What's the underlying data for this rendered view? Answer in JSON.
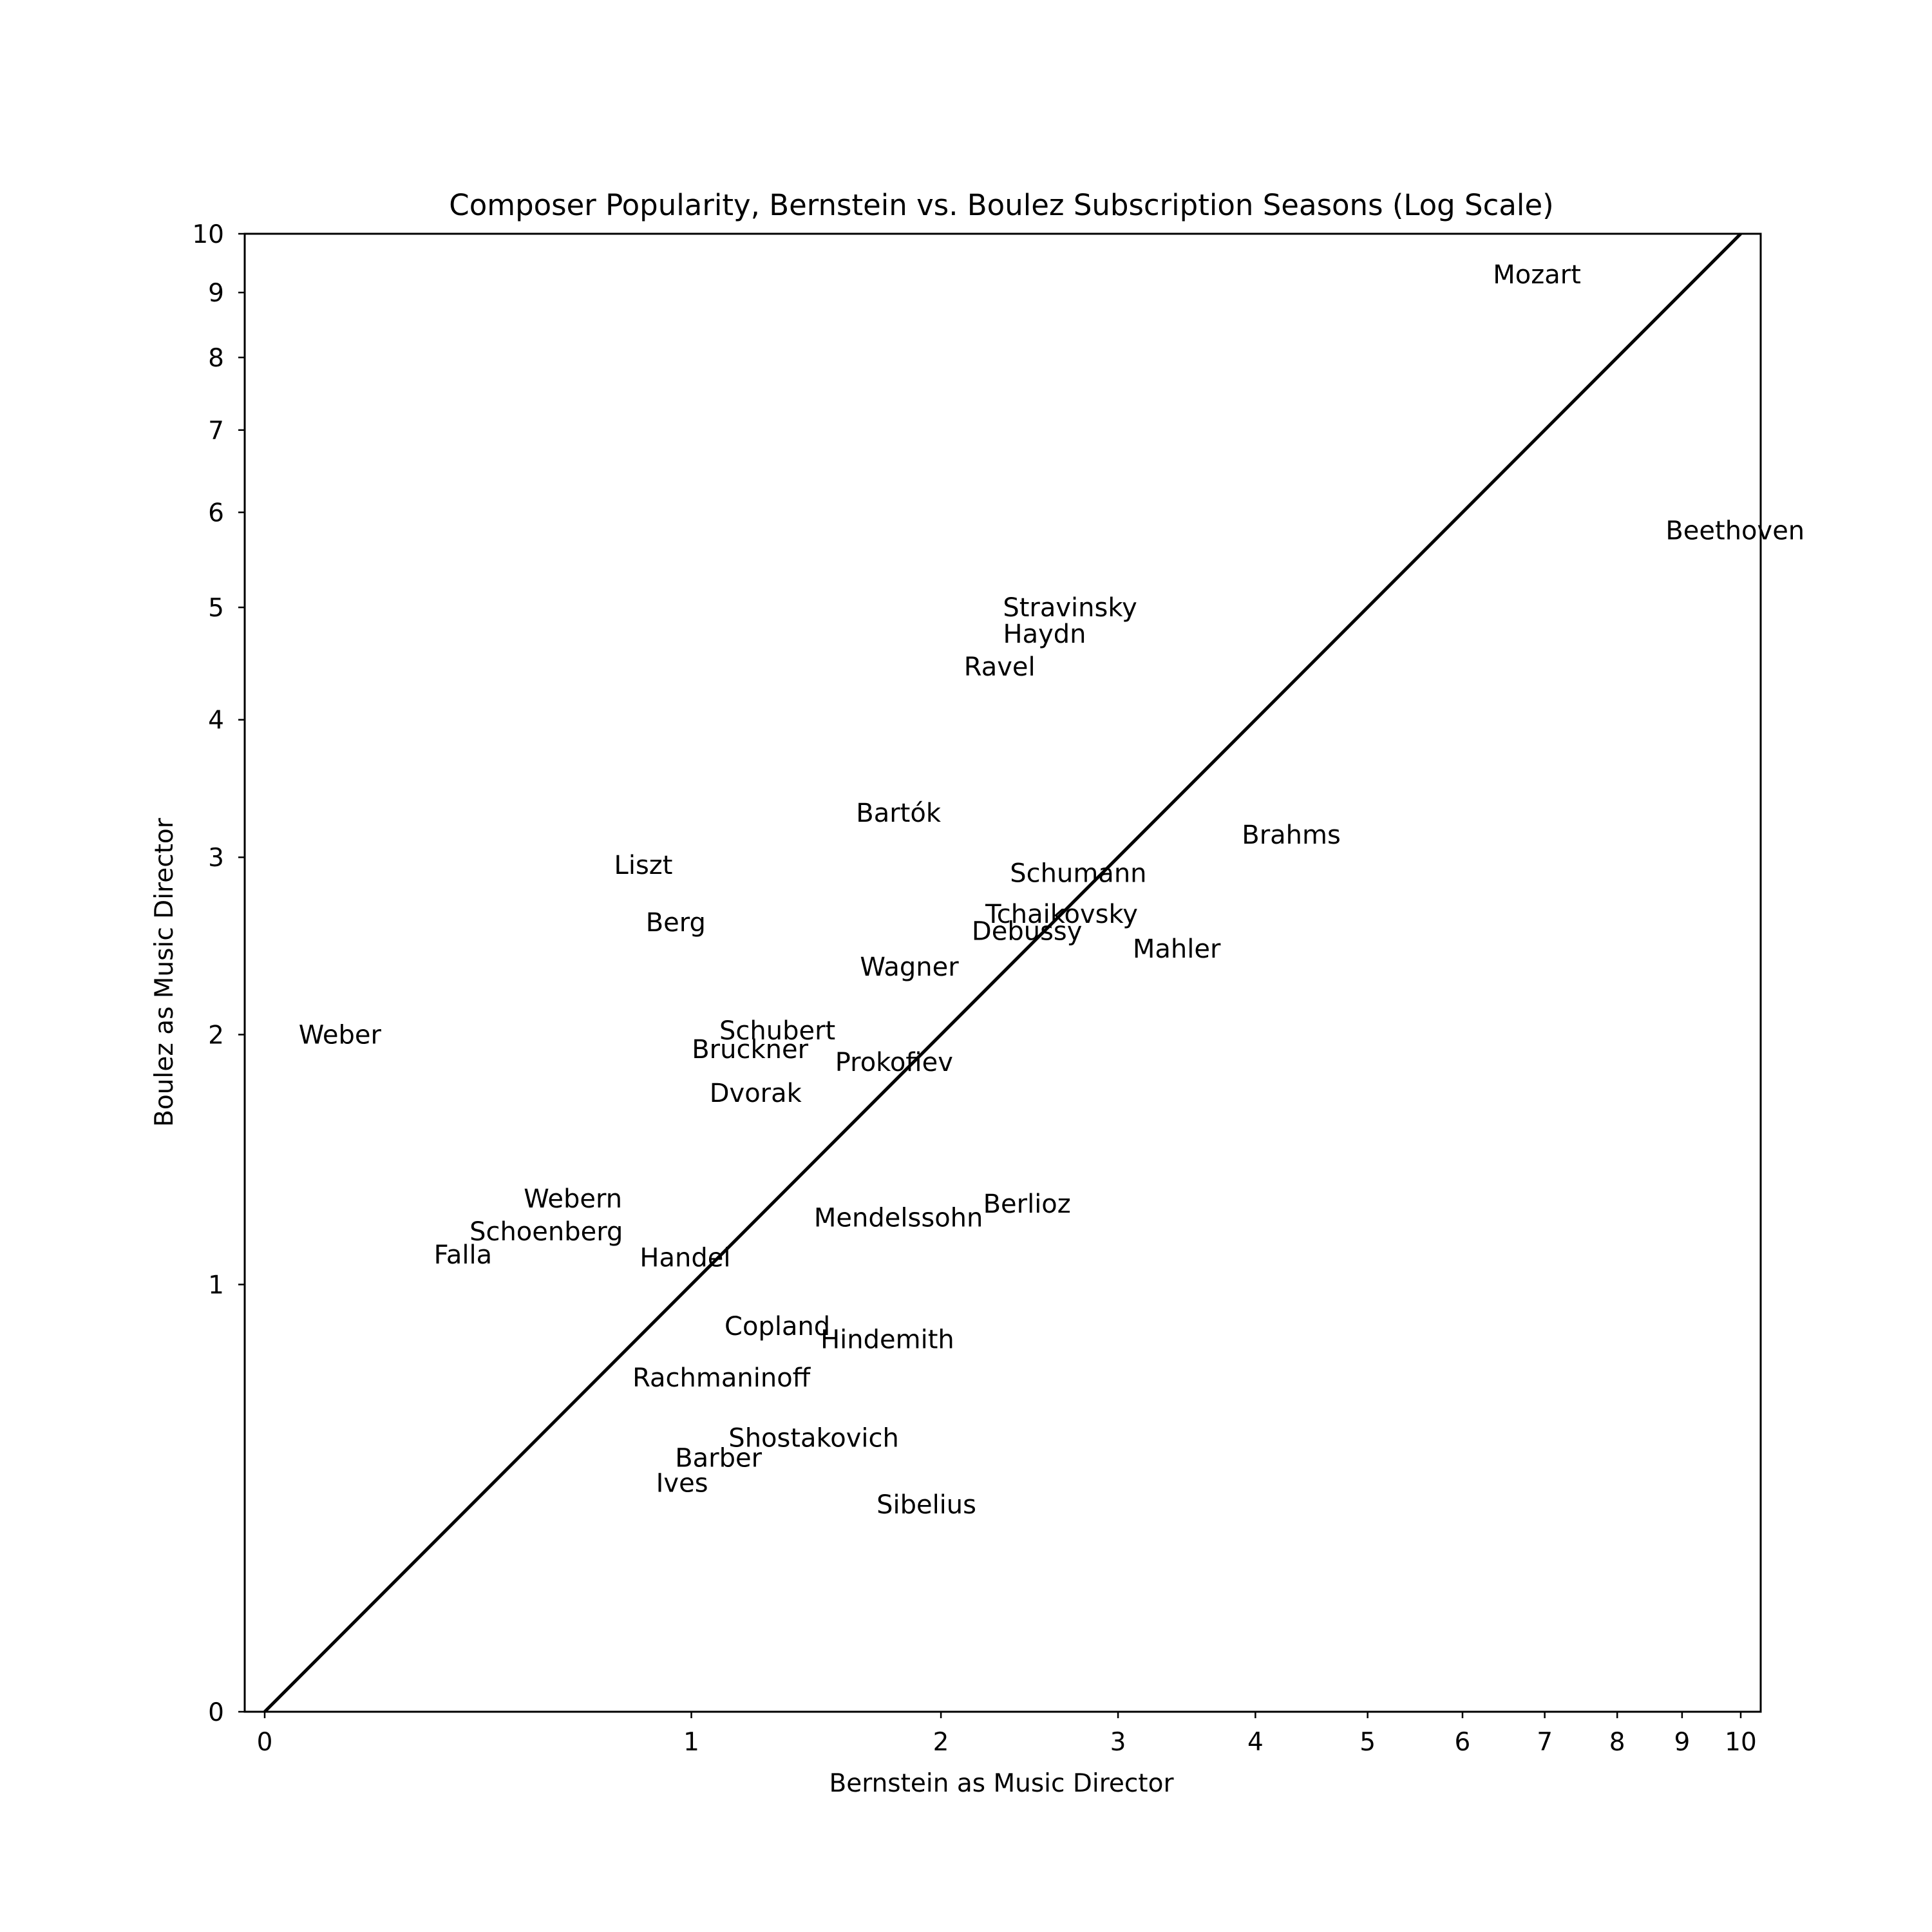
{
  "chart_data": {
    "type": "scatter",
    "title": "Composer Popularity, Bernstein vs. Boulez Subscription Seasons (Log Scale)",
    "xlabel": "Bernstein as Music Director",
    "ylabel": "Boulez as Music Director",
    "scale": "log(1 + value)",
    "xlim": [
      0,
      10
    ],
    "ylim": [
      0,
      10
    ],
    "x_ticks": [
      0,
      1,
      2,
      3,
      4,
      5,
      6,
      7,
      8,
      9,
      10
    ],
    "y_ticks": [
      0,
      1,
      2,
      3,
      4,
      5,
      6,
      7,
      8,
      9,
      10
    ],
    "reference_line": "y = x",
    "grid": false,
    "points": [
      {
        "label": "Mozart",
        "x": 6.9,
        "y": 9.3
      },
      {
        "label": "Beethoven",
        "x": 9.9,
        "y": 5.8
      },
      {
        "label": "Stravinsky",
        "x": 2.7,
        "y": 5.0
      },
      {
        "label": "Haydn",
        "x": 2.55,
        "y": 4.75
      },
      {
        "label": "Ravel",
        "x": 2.3,
        "y": 4.45
      },
      {
        "label": "Bartók",
        "x": 1.8,
        "y": 3.3
      },
      {
        "label": "Brahms",
        "x": 4.3,
        "y": 3.15
      },
      {
        "label": "Liszt",
        "x": 0.85,
        "y": 2.95
      },
      {
        "label": "Schumann",
        "x": 2.75,
        "y": 2.9
      },
      {
        "label": "Tchaikovsky",
        "x": 2.65,
        "y": 2.65
      },
      {
        "label": "Berg",
        "x": 0.95,
        "y": 2.6
      },
      {
        "label": "Debussy",
        "x": 2.45,
        "y": 2.55
      },
      {
        "label": "Mahler",
        "x": 3.4,
        "y": 2.45
      },
      {
        "label": "Wagner",
        "x": 1.85,
        "y": 2.35
      },
      {
        "label": "Weber",
        "x": 0.13,
        "y": 2.0
      },
      {
        "label": "Schubert",
        "x": 1.3,
        "y": 2.02
      },
      {
        "label": "Bruckner",
        "x": 1.2,
        "y": 1.93
      },
      {
        "label": "Prokofiev",
        "x": 1.78,
        "y": 1.87
      },
      {
        "label": "Dvorak",
        "x": 1.22,
        "y": 1.73
      },
      {
        "label": "Webern",
        "x": 0.65,
        "y": 1.3
      },
      {
        "label": "Berlioz",
        "x": 2.45,
        "y": 1.28
      },
      {
        "label": "Mendelssohn",
        "x": 1.8,
        "y": 1.23
      },
      {
        "label": "Schoenberg",
        "x": 0.58,
        "y": 1.18
      },
      {
        "label": "Falla",
        "x": 0.38,
        "y": 1.1
      },
      {
        "label": "Handel",
        "x": 0.98,
        "y": 1.09
      },
      {
        "label": "Copland",
        "x": 1.3,
        "y": 0.87
      },
      {
        "label": "Hindemith",
        "x": 1.75,
        "y": 0.83
      },
      {
        "label": "Rachmaninoff",
        "x": 1.1,
        "y": 0.72
      },
      {
        "label": "Shostakovich",
        "x": 1.44,
        "y": 0.56
      },
      {
        "label": "Barber",
        "x": 1.09,
        "y": 0.51
      },
      {
        "label": "Ives",
        "x": 0.97,
        "y": 0.45
      },
      {
        "label": "Sibelius",
        "x": 1.93,
        "y": 0.4
      }
    ]
  }
}
